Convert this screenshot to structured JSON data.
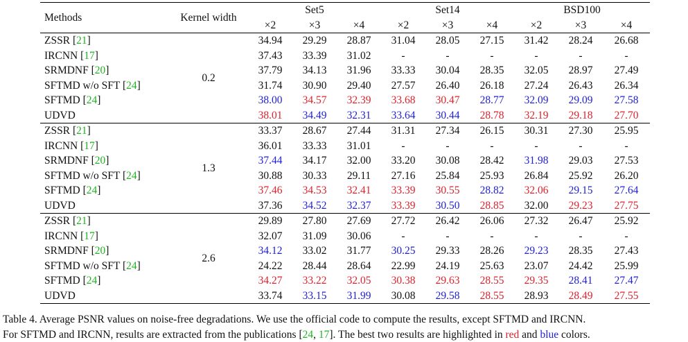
{
  "table": {
    "header": {
      "methods": "Methods",
      "kernel_width": "Kernel width",
      "datasets": [
        "Set5",
        "Set14",
        "BSD100"
      ],
      "scales": [
        "×2",
        "×3",
        "×4"
      ]
    },
    "groups": [
      {
        "kernel_width": "0.2",
        "rows": [
          {
            "method": "ZSSR",
            "cite": "21",
            "values": [
              "34.94",
              "29.29",
              "28.87",
              "31.04",
              "28.05",
              "27.15",
              "31.42",
              "28.24",
              "26.68"
            ],
            "colors": [
              "",
              "",
              "",
              "",
              "",
              "",
              "",
              "",
              ""
            ]
          },
          {
            "method": "IRCNN",
            "cite": "17",
            "values": [
              "37.43",
              "33.39",
              "31.02",
              "-",
              "-",
              "-",
              "-",
              "-",
              "-"
            ],
            "colors": [
              "",
              "",
              "",
              "",
              "",
              "",
              "",
              "",
              ""
            ]
          },
          {
            "method": "SRMDNF",
            "cite": "20",
            "values": [
              "37.79",
              "34.13",
              "31.96",
              "33.33",
              "30.04",
              "28.35",
              "32.05",
              "28.97",
              "27.49"
            ],
            "colors": [
              "",
              "",
              "",
              "",
              "",
              "",
              "",
              "",
              ""
            ]
          },
          {
            "method": "SFTMD w/o SFT",
            "cite": "24",
            "values": [
              "31.74",
              "30.90",
              "29.40",
              "27.57",
              "26.40",
              "26.18",
              "27.24",
              "26.43",
              "26.34"
            ],
            "colors": [
              "",
              "",
              "",
              "",
              "",
              "",
              "",
              "",
              ""
            ]
          },
          {
            "method": "SFTMD",
            "cite": "24",
            "values": [
              "38.00",
              "34.57",
              "32.39",
              "33.68",
              "30.47",
              "28.77",
              "32.09",
              "29.09",
              "27.58"
            ],
            "colors": [
              "blue",
              "red",
              "red",
              "red",
              "red",
              "blue",
              "blue",
              "blue",
              "blue"
            ]
          },
          {
            "method": "UDVD",
            "cite": "",
            "values": [
              "38.01",
              "34.49",
              "32.31",
              "33.64",
              "30.44",
              "28.78",
              "32.19",
              "29.18",
              "27.70"
            ],
            "colors": [
              "red",
              "blue",
              "blue",
              "blue",
              "blue",
              "red",
              "red",
              "red",
              "red"
            ]
          }
        ]
      },
      {
        "kernel_width": "1.3",
        "rows": [
          {
            "method": "ZSSR",
            "cite": "21",
            "values": [
              "33.37",
              "28.67",
              "27.44",
              "31.31",
              "27.34",
              "26.15",
              "30.31",
              "27.30",
              "25.95"
            ],
            "colors": [
              "",
              "",
              "",
              "",
              "",
              "",
              "",
              "",
              ""
            ]
          },
          {
            "method": "IRCNN",
            "cite": "17",
            "values": [
              "36.01",
              "33.33",
              "31.01",
              "-",
              "-",
              "-",
              "-",
              "-",
              "-"
            ],
            "colors": [
              "",
              "",
              "",
              "",
              "",
              "",
              "",
              "",
              ""
            ]
          },
          {
            "method": "SRMDNF",
            "cite": "20",
            "values": [
              "37.44",
              "34.17",
              "32.00",
              "33.20",
              "30.08",
              "28.42",
              "31.98",
              "29.03",
              "27.53"
            ],
            "colors": [
              "blue",
              "",
              "",
              "",
              "",
              "",
              "blue",
              "",
              ""
            ]
          },
          {
            "method": "SFTMD w/o SFT",
            "cite": "24",
            "values": [
              "30.88",
              "30.33",
              "29.11",
              "27.16",
              "25.84",
              "25.93",
              "26.84",
              "25.92",
              "26.20"
            ],
            "colors": [
              "",
              "",
              "",
              "",
              "",
              "",
              "",
              "",
              ""
            ]
          },
          {
            "method": "SFTMD",
            "cite": "24",
            "values": [
              "37.46",
              "34.53",
              "32.41",
              "33.39",
              "30.55",
              "28.82",
              "32.06",
              "29.15",
              "27.64"
            ],
            "colors": [
              "red",
              "red",
              "red",
              "red",
              "red",
              "blue",
              "red",
              "blue",
              "blue"
            ]
          },
          {
            "method": "UDVD",
            "cite": "",
            "values": [
              "37.36",
              "34.52",
              "32.37",
              "33.39",
              "30.50",
              "28.85",
              "32.00",
              "29.23",
              "27.75"
            ],
            "colors": [
              "",
              "blue",
              "blue",
              "red",
              "blue",
              "red",
              "",
              "red",
              "red"
            ]
          }
        ]
      },
      {
        "kernel_width": "2.6",
        "rows": [
          {
            "method": "ZSSR",
            "cite": "21",
            "values": [
              "29.89",
              "27.80",
              "27.69",
              "27.72",
              "26.42",
              "26.06",
              "27.32",
              "26.47",
              "25.92"
            ],
            "colors": [
              "",
              "",
              "",
              "",
              "",
              "",
              "",
              "",
              ""
            ]
          },
          {
            "method": "IRCNN",
            "cite": "17",
            "values": [
              "32.07",
              "31.09",
              "30.06",
              "-",
              "-",
              "-",
              "-",
              "-",
              "-"
            ],
            "colors": [
              "",
              "",
              "",
              "",
              "",
              "",
              "",
              "",
              ""
            ]
          },
          {
            "method": "SRMDNF",
            "cite": "20",
            "values": [
              "34.12",
              "33.02",
              "31.77",
              "30.25",
              "29.33",
              "28.26",
              "29.23",
              "28.35",
              "27.43"
            ],
            "colors": [
              "blue",
              "",
              "",
              "blue",
              "",
              "",
              "blue",
              "",
              ""
            ]
          },
          {
            "method": "SFTMD w/o SFT",
            "cite": "24",
            "values": [
              "24.22",
              "28.44",
              "28.64",
              "22.99",
              "24.19",
              "25.63",
              "23.07",
              "24.42",
              "25.99"
            ],
            "colors": [
              "",
              "",
              "",
              "",
              "",
              "",
              "",
              "",
              ""
            ]
          },
          {
            "method": "SFTMD",
            "cite": "24",
            "values": [
              "34.27",
              "33.22",
              "32.05",
              "30.38",
              "29.63",
              "28.55",
              "29.35",
              "28.41",
              "27.47"
            ],
            "colors": [
              "red",
              "red",
              "red",
              "red",
              "red",
              "red",
              "red",
              "blue",
              "blue"
            ]
          },
          {
            "method": "UDVD",
            "cite": "",
            "values": [
              "33.74",
              "33.15",
              "31.99",
              "30.08",
              "29.58",
              "28.55",
              "28.93",
              "28.49",
              "27.55"
            ],
            "colors": [
              "",
              "blue",
              "blue",
              "",
              "blue",
              "red",
              "",
              "red",
              "red"
            ]
          }
        ]
      }
    ]
  },
  "caption": {
    "line1": "Table 4. Average PSNR values on noise-free degradations. We use the official code to compute the results, except SFTMD and IRCNN.",
    "line2_pre": "For SFTMD and IRCNN, results are extracted from the publications [",
    "ref1": "24",
    "sep": ", ",
    "ref2": "17",
    "line2_mid": "]. The best two results are highlighted in ",
    "red_word": "red",
    "and_word": " and ",
    "blue_word": "blue",
    "line2_end": " colors."
  },
  "colors": {
    "red": "#e0202a",
    "blue": "#2020d8",
    "cite_green": "#1fb41f"
  }
}
